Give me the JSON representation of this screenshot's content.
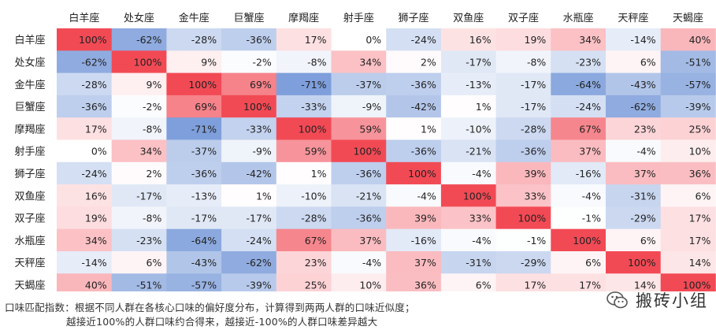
{
  "chart_data": {
    "type": "heatmap",
    "columns": [
      "白羊座",
      "处女座",
      "金牛座",
      "巨蟹座",
      "摩羯座",
      "射手座",
      "狮子座",
      "双鱼座",
      "双子座",
      "水瓶座",
      "天秤座",
      "天蝎座"
    ],
    "rows": [
      "白羊座",
      "处女座",
      "金牛座",
      "巨蟹座",
      "摩羯座",
      "射手座",
      "狮子座",
      "双鱼座",
      "双子座",
      "水瓶座",
      "天秤座",
      "天蝎座"
    ],
    "values": [
      [
        100,
        -62,
        -28,
        -36,
        17,
        0,
        -24,
        16,
        19,
        34,
        -14,
        40
      ],
      [
        -62,
        100,
        9,
        -2,
        -8,
        34,
        2,
        -17,
        -8,
        -23,
        6,
        -51
      ],
      [
        -28,
        9,
        100,
        69,
        -71,
        -37,
        -36,
        -13,
        -17,
        -64,
        -43,
        -57
      ],
      [
        -36,
        -2,
        69,
        100,
        -33,
        -9,
        -42,
        1,
        -17,
        -24,
        -62,
        -39
      ],
      [
        17,
        -8,
        -71,
        -33,
        100,
        59,
        1,
        -10,
        -28,
        67,
        23,
        25
      ],
      [
        0,
        34,
        -37,
        -9,
        59,
        100,
        -36,
        -21,
        -36,
        37,
        -4,
        10
      ],
      [
        -24,
        2,
        -36,
        -42,
        1,
        -36,
        100,
        -4,
        39,
        -16,
        37,
        36
      ],
      [
        16,
        -17,
        -13,
        1,
        -10,
        -21,
        -4,
        100,
        33,
        -4,
        -31,
        6
      ],
      [
        19,
        -8,
        -17,
        -17,
        -28,
        -36,
        39,
        33,
        100,
        -1,
        -29,
        17
      ],
      [
        34,
        -23,
        -64,
        -24,
        67,
        37,
        -16,
        -4,
        -1,
        100,
        6,
        17
      ],
      [
        -14,
        6,
        -43,
        -62,
        23,
        -4,
        37,
        -31,
        -29,
        6,
        100,
        14
      ],
      [
        40,
        -51,
        -57,
        -39,
        25,
        10,
        36,
        6,
        17,
        17,
        14,
        100
      ]
    ],
    "value_suffix": "%",
    "range": [
      -100,
      100
    ],
    "colors": {
      "positive": "#f24a55",
      "negative": "#4a78cc",
      "neutral": "#ffffff"
    }
  },
  "footnote": {
    "line1": "口味匹配指数：根据不同人群在各核心口味的偏好度分布，计算得到两两人群的口味近似度；",
    "line2": "越接近100%的人群口味约合得来，越接近-100%的人群口味差异越大"
  },
  "watermark": {
    "text": "搬砖小组",
    "icon": "wechat-icon"
  }
}
